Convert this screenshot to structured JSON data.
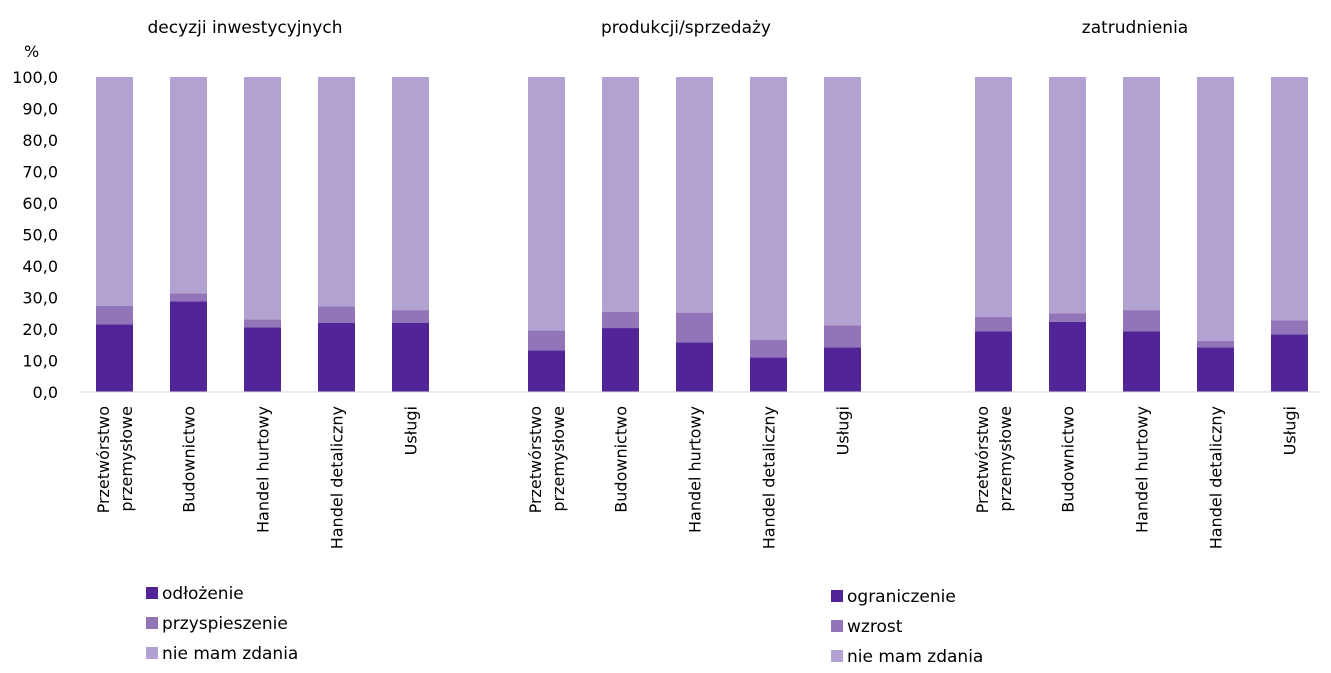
{
  "chart_data": {
    "type": "bar",
    "stacked": true,
    "y_unit": "%",
    "ylim": [
      0,
      100
    ],
    "y_ticks": [
      "0,0",
      "10,0",
      "20,0",
      "30,0",
      "40,0",
      "50,0",
      "60,0",
      "70,0",
      "80,0",
      "90,0",
      "100,0"
    ],
    "categories": [
      [
        "Przetwórstwo",
        "przemysłowe"
      ],
      [
        "Budownictwo"
      ],
      [
        "Handel hurtowy"
      ],
      [
        "Handel detaliczny"
      ],
      [
        "Usługi"
      ]
    ],
    "panels": [
      {
        "title": "decyzji inwestycyjnych",
        "series": [
          {
            "name": "odłożenie",
            "color": "#512597",
            "values": [
              21.5,
              28.8,
              20.5,
              22.0,
              22.0
            ]
          },
          {
            "name": "przyspieszenie",
            "color": "#9274b8",
            "values": [
              5.8,
              2.5,
              2.5,
              5.2,
              4.0
            ]
          },
          {
            "name": "nie mam zdania",
            "color": "#b2a2d1",
            "values": [
              72.7,
              68.7,
              77.0,
              72.8,
              74.0
            ]
          }
        ]
      },
      {
        "title": "produkcji/sprzedaży",
        "series": [
          {
            "name": "ograniczenie",
            "color": "#512597",
            "values": [
              13.2,
              20.3,
              15.7,
              11.0,
              14.2
            ]
          },
          {
            "name": "wzrost",
            "color": "#9274b8",
            "values": [
              6.3,
              5.2,
              9.5,
              5.5,
              7.0
            ]
          },
          {
            "name": "nie mam zdania",
            "color": "#b2a2d1",
            "values": [
              80.5,
              74.5,
              74.8,
              83.5,
              78.8
            ]
          }
        ]
      },
      {
        "title": "zatrudnienia",
        "series": [
          {
            "name": "ograniczenie",
            "color": "#512597",
            "values": [
              19.3,
              22.3,
              19.2,
              14.2,
              18.3
            ]
          },
          {
            "name": "wzrost",
            "color": "#9274b8",
            "values": [
              4.5,
              2.7,
              6.8,
              2.0,
              4.5
            ]
          },
          {
            "name": "nie mam zdania",
            "color": "#b2a2d1",
            "values": [
              76.2,
              75.0,
              74.0,
              83.8,
              77.2
            ]
          }
        ]
      }
    ],
    "legends": [
      {
        "for_panel": 0,
        "entries": [
          "odłożenie",
          "przyspieszenie",
          "nie mam zdania"
        ]
      },
      {
        "for_panel": 1,
        "entries": [
          "ograniczenie",
          "wzrost",
          "nie mam zdania"
        ]
      }
    ],
    "grid": false,
    "axis_color": "#d9d9d9"
  }
}
